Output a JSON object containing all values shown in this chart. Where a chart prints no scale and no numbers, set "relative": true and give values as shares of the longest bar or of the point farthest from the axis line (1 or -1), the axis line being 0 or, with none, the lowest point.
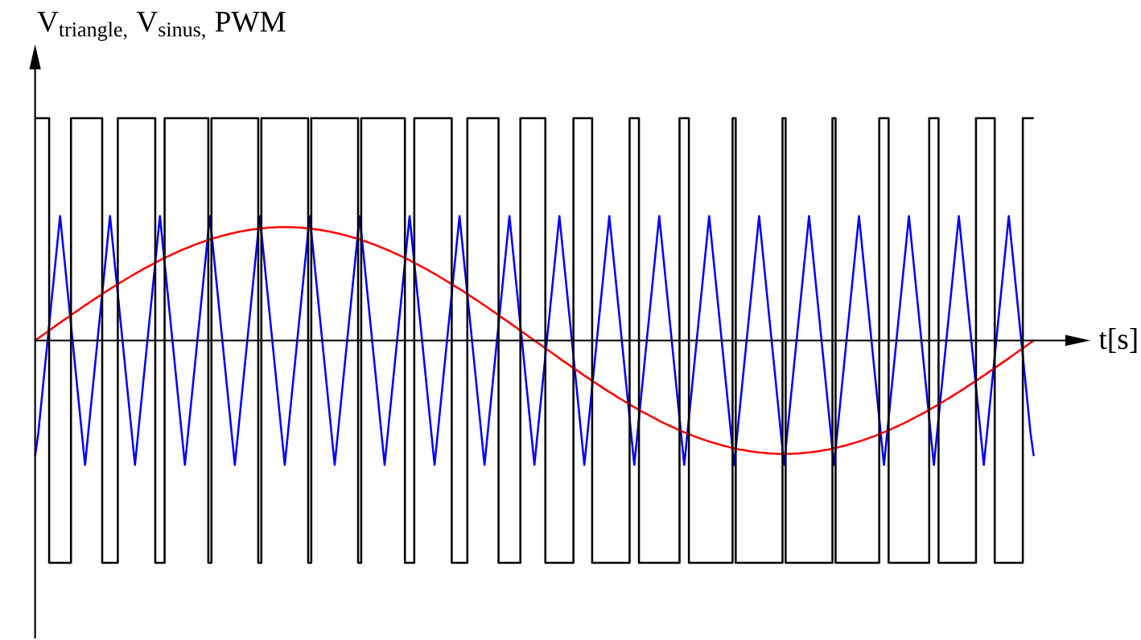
{
  "chart_data": {
    "type": "line",
    "relative": true,
    "xlabel": "t[s]",
    "ylabel": "V$_{triangle,}$ V$_{sinus,}$ PWM",
    "categories": [
      null,
      null,
      null,
      null,
      null,
      null,
      null,
      null,
      null,
      null,
      null,
      null,
      null,
      null,
      null,
      null,
      null,
      null,
      null,
      null,
      null,
      null,
      null,
      null,
      null,
      null,
      null,
      null,
      null,
      null,
      null,
      null,
      null,
      null,
      null,
      null,
      null,
      null,
      null,
      null,
      null,
      null,
      null,
      null,
      null,
      null,
      null,
      null,
      null,
      null,
      null,
      null,
      null,
      null,
      null,
      null,
      null,
      null,
      null,
      null,
      null,
      null,
      null,
      null,
      null,
      null,
      null,
      null,
      null,
      null,
      null,
      null,
      null,
      null,
      null,
      null,
      null,
      null,
      null,
      null,
      null,
      null,
      null,
      null,
      null,
      null,
      null,
      null,
      null,
      null,
      null,
      null,
      null,
      null,
      null,
      null,
      null,
      null,
      null,
      null,
      null,
      null,
      null,
      null,
      null,
      null,
      null,
      null,
      null,
      null,
      null,
      null,
      null,
      null,
      null,
      null,
      null,
      null,
      null,
      null,
      null,
      null,
      null,
      null,
      null,
      null,
      null,
      null,
      null,
      null,
      null,
      null,
      null,
      null,
      null,
      null,
      null,
      null,
      null,
      null,
      null,
      null,
      null,
      null,
      null,
      null,
      null,
      null,
      null,
      null,
      null,
      null,
      null,
      null,
      null,
      null,
      null,
      null,
      null,
      null,
      null,
      null,
      null,
      null,
      null,
      null,
      null,
      null,
      null,
      null,
      null,
      null,
      null,
      null,
      null,
      null,
      null,
      null,
      null,
      null,
      null,
      null,
      null,
      null,
      null,
      null,
      null,
      null,
      null,
      null,
      null,
      null,
      null,
      null,
      null,
      null,
      null,
      null,
      null,
      null,
      null,
      null,
      null,
      null,
      null,
      null,
      null,
      null,
      null,
      null,
      null,
      null,
      null,
      null,
      null,
      null,
      null,
      null,
      null,
      null,
      null,
      null,
      null,
      null,
      null,
      null,
      null,
      null,
      null,
      null,
      null,
      null,
      null,
      null,
      null,
      null,
      null,
      null,
      null,
      null,
      null,
      null,
      null,
      null,
      null,
      null,
      null,
      null,
      null,
      null,
      null,
      null,
      null,
      null,
      null,
      null,
      null,
      null,
      null,
      null,
      null,
      null,
      null,
      null,
      null,
      null,
      null,
      null,
      null,
      null,
      null,
      null,
      null,
      null,
      null,
      null,
      null,
      null,
      null,
      null,
      null,
      null,
      null,
      null,
      null,
      null,
      null,
      null,
      null,
      null,
      null,
      null,
      null,
      null,
      null,
      null,
      null,
      null,
      null,
      null,
      null,
      null,
      null,
      null,
      null,
      null,
      null,
      null,
      null,
      null,
      null,
      null,
      null,
      null,
      null,
      null,
      null,
      null,
      null,
      null,
      null
    ],
    "series": [
      {
        "color": "#0000ff",
        "values": [
          -0.52,
          -0.42,
          -0.28,
          -0.14,
          0,
          0.14,
          0.28,
          0.42,
          0.56,
          0.42,
          0.28,
          0.14,
          0,
          -0.14,
          -0.28,
          -0.42,
          -0.56,
          -0.42,
          -0.28,
          -0.14,
          0,
          0.14,
          0.28,
          0.42,
          0.56,
          0.42,
          0.28,
          0.14,
          0,
          -0.14,
          -0.28,
          -0.42,
          -0.56,
          -0.42,
          -0.28,
          -0.14,
          0,
          0.14,
          0.28,
          0.42,
          0.56,
          0.42,
          0.28,
          0.14,
          0,
          -0.14,
          -0.28,
          -0.42,
          -0.56,
          -0.42,
          -0.28,
          -0.14,
          0,
          0.14,
          0.28,
          0.42,
          0.56,
          0.42,
          0.28,
          0.14,
          0,
          -0.14,
          -0.28,
          -0.42,
          -0.56,
          -0.42,
          -0.28,
          -0.14,
          0,
          0.14,
          0.28,
          0.42,
          0.56,
          0.42,
          0.28,
          0.14,
          0,
          -0.14,
          -0.28,
          -0.42,
          -0.56,
          -0.42,
          -0.28,
          -0.14,
          0,
          0.14,
          0.28,
          0.42,
          0.56,
          0.42,
          0.28,
          0.14,
          0,
          -0.14,
          -0.28,
          -0.42,
          -0.56,
          -0.42,
          -0.28,
          -0.14,
          0,
          0.14,
          0.28,
          0.42,
          0.56,
          0.42,
          0.28,
          0.14,
          0,
          -0.14,
          -0.28,
          -0.42,
          -0.56,
          -0.42,
          -0.28,
          -0.14,
          0,
          0.14,
          0.28,
          0.42,
          0.56,
          0.42,
          0.28,
          0.14,
          0,
          -0.14,
          -0.28,
          -0.42,
          -0.56,
          -0.42,
          -0.28,
          -0.14,
          0,
          0.14,
          0.28,
          0.42,
          0.56,
          0.42,
          0.28,
          0.14,
          0,
          -0.14,
          -0.28,
          -0.42,
          -0.56,
          -0.42,
          -0.28,
          -0.14,
          0,
          0.14,
          0.28,
          0.42,
          0.56,
          0.42,
          0.28,
          0.14,
          0,
          -0.14,
          -0.28,
          -0.42,
          -0.56,
          -0.42,
          -0.28,
          -0.14,
          0,
          0.14,
          0.28,
          0.42,
          0.56,
          0.42,
          0.28,
          0.14,
          0,
          -0.14,
          -0.28,
          -0.42,
          -0.56,
          -0.42,
          -0.28,
          -0.14,
          0,
          0.14,
          0.28,
          0.42,
          0.56,
          0.42,
          0.28,
          0.14,
          0,
          -0.14,
          -0.28,
          -0.42,
          -0.56,
          -0.42,
          -0.28,
          -0.14,
          0,
          0.14,
          0.28,
          0.42,
          0.56,
          0.42,
          0.28,
          0.14,
          0,
          -0.14,
          -0.28,
          -0.42,
          -0.56,
          -0.42,
          -0.28,
          -0.14,
          0,
          0.14,
          0.28,
          0.42,
          0.56,
          0.42,
          0.28,
          0.14,
          0,
          -0.14,
          -0.28,
          -0.42,
          -0.56,
          -0.42,
          -0.28,
          -0.14,
          0,
          0.14,
          0.28,
          0.42,
          0.56,
          0.42,
          0.28,
          0.14,
          0,
          -0.14,
          -0.28,
          -0.42,
          -0.56,
          -0.42,
          -0.28,
          -0.14,
          0,
          0.14,
          0.28,
          0.42,
          0.56,
          0.42,
          0.28,
          0.14,
          0,
          -0.14,
          -0.28,
          -0.42,
          -0.56,
          -0.42,
          -0.28,
          -0.14,
          0,
          0.14,
          0.28,
          0.42,
          0.56,
          0.42,
          0.28,
          0.14,
          0,
          -0.14,
          -0.28,
          -0.42,
          -0.56,
          -0.42,
          -0.28,
          -0.14,
          0,
          0.14,
          0.28,
          0.42,
          0.56,
          0.42,
          0.28,
          0.14,
          0,
          -0.14,
          -0.28,
          -0.42,
          -0.56,
          -0.42,
          -0.28,
          -0.14,
          0,
          0.14,
          0.28,
          0.42,
          0.56,
          0.42,
          0.28,
          0.14,
          0,
          -0.14,
          -0.28,
          -0.42,
          -0.56,
          -0.42,
          -0.28,
          -0.14,
          0,
          0.14,
          0.28,
          0.42,
          0.56,
          0.42,
          0.28,
          0.14,
          0,
          -0.14,
          -0.28,
          -0.42,
          -0.52
        ]
      },
      {
        "color": "#ff0000",
        "values": [
          0,
          0.01,
          0.02,
          0.03,
          0.04,
          0.05,
          0.06,
          0.07,
          0.08,
          0.09,
          0.099,
          0.109,
          0.119,
          0.129,
          0.138,
          0.148,
          0.158,
          0.167,
          0.177,
          0.186,
          0.195,
          0.204,
          0.214,
          0.223,
          0.232,
          0.24,
          0.249,
          0.258,
          0.266,
          0.275,
          0.283,
          0.292,
          0.3,
          0.308,
          0.316,
          0.324,
          0.331,
          0.339,
          0.346,
          0.353,
          0.361,
          0.368,
          0.375,
          0.381,
          0.388,
          0.394,
          0.401,
          0.407,
          0.413,
          0.418,
          0.424,
          0.43,
          0.435,
          0.44,
          0.445,
          0.45,
          0.454,
          0.459,
          0.463,
          0.467,
          0.471,
          0.475,
          0.478,
          0.482,
          0.485,
          0.488,
          0.491,
          0.493,
          0.496,
          0.498,
          0.5,
          0.502,
          0.504,
          0.505,
          0.506,
          0.508,
          0.508,
          0.509,
          0.51,
          0.51,
          0.51,
          0.51,
          0.51,
          0.509,
          0.508,
          0.508,
          0.506,
          0.505,
          0.504,
          0.502,
          0.5,
          0.498,
          0.496,
          0.493,
          0.491,
          0.488,
          0.485,
          0.482,
          0.478,
          0.475,
          0.471,
          0.467,
          0.463,
          0.459,
          0.454,
          0.45,
          0.445,
          0.44,
          0.435,
          0.43,
          0.424,
          0.418,
          0.413,
          0.407,
          0.401,
          0.394,
          0.388,
          0.381,
          0.375,
          0.368,
          0.361,
          0.353,
          0.346,
          0.339,
          0.331,
          0.324,
          0.316,
          0.308,
          0.3,
          0.292,
          0.283,
          0.275,
          0.266,
          0.258,
          0.249,
          0.24,
          0.232,
          0.223,
          0.214,
          0.204,
          0.195,
          0.186,
          0.177,
          0.167,
          0.158,
          0.148,
          0.138,
          0.129,
          0.119,
          0.109,
          0.099,
          0.09,
          0.08,
          0.07,
          0.06,
          0.05,
          0.04,
          0.03,
          0.02,
          0.01,
          0,
          -0.01,
          -0.02,
          -0.03,
          -0.04,
          -0.05,
          -0.06,
          -0.07,
          -0.08,
          -0.09,
          -0.099,
          -0.109,
          -0.119,
          -0.129,
          -0.138,
          -0.148,
          -0.158,
          -0.167,
          -0.177,
          -0.186,
          -0.195,
          -0.204,
          -0.214,
          -0.223,
          -0.232,
          -0.24,
          -0.249,
          -0.258,
          -0.266,
          -0.275,
          -0.283,
          -0.292,
          -0.3,
          -0.308,
          -0.316,
          -0.324,
          -0.331,
          -0.339,
          -0.346,
          -0.353,
          -0.361,
          -0.368,
          -0.375,
          -0.381,
          -0.388,
          -0.394,
          -0.401,
          -0.407,
          -0.413,
          -0.418,
          -0.424,
          -0.43,
          -0.435,
          -0.44,
          -0.445,
          -0.45,
          -0.454,
          -0.459,
          -0.463,
          -0.467,
          -0.471,
          -0.475,
          -0.478,
          -0.482,
          -0.485,
          -0.488,
          -0.491,
          -0.493,
          -0.496,
          -0.498,
          -0.5,
          -0.502,
          -0.504,
          -0.505,
          -0.506,
          -0.508,
          -0.508,
          -0.509,
          -0.51,
          -0.51,
          -0.51,
          -0.51,
          -0.51,
          -0.509,
          -0.508,
          -0.508,
          -0.506,
          -0.505,
          -0.504,
          -0.502,
          -0.5,
          -0.498,
          -0.496,
          -0.493,
          -0.491,
          -0.488,
          -0.485,
          -0.482,
          -0.478,
          -0.475,
          -0.471,
          -0.467,
          -0.463,
          -0.459,
          -0.454,
          -0.45,
          -0.445,
          -0.44,
          -0.435,
          -0.43,
          -0.424,
          -0.418,
          -0.413,
          -0.407,
          -0.401,
          -0.394,
          -0.388,
          -0.381,
          -0.375,
          -0.368,
          -0.361,
          -0.353,
          -0.346,
          -0.339,
          -0.331,
          -0.324,
          -0.316,
          -0.308,
          -0.3,
          -0.292,
          -0.283,
          -0.275,
          -0.266,
          -0.258,
          -0.249,
          -0.24,
          -0.232,
          -0.223,
          -0.214,
          -0.204,
          -0.195,
          -0.186,
          -0.177,
          -0.167,
          -0.158,
          -0.148,
          -0.138,
          -0.129,
          -0.119,
          -0.109,
          -0.099,
          -0.09,
          -0.08,
          -0.07,
          -0.06,
          -0.05,
          -0.04,
          -0.03,
          -0.02,
          -0.01,
          0
        ]
      },
      {
        "type": "step",
        "color": "#000000",
        "values": [
          1,
          1,
          1,
          1,
          1,
          -1,
          -1,
          -1,
          -1,
          -1,
          -1,
          -1,
          1,
          1,
          1,
          1,
          1,
          1,
          1,
          1,
          1,
          1,
          -1,
          -1,
          -1,
          -1,
          -1,
          1,
          1,
          1,
          1,
          1,
          1,
          1,
          1,
          1,
          1,
          1,
          1,
          -1,
          -1,
          -1,
          1,
          1,
          1,
          1,
          1,
          1,
          1,
          1,
          1,
          1,
          1,
          1,
          1,
          1,
          -1,
          1,
          1,
          1,
          1,
          1,
          1,
          1,
          1,
          1,
          1,
          1,
          1,
          1,
          1,
          1,
          -1,
          1,
          1,
          1,
          1,
          1,
          1,
          1,
          1,
          1,
          1,
          1,
          1,
          1,
          1,
          1,
          -1,
          1,
          1,
          1,
          1,
          1,
          1,
          1,
          1,
          1,
          1,
          1,
          1,
          1,
          1,
          1,
          -1,
          1,
          1,
          1,
          1,
          1,
          1,
          1,
          1,
          1,
          1,
          1,
          1,
          1,
          1,
          -1,
          -1,
          -1,
          1,
          1,
          1,
          1,
          1,
          1,
          1,
          1,
          1,
          1,
          1,
          1,
          -1,
          -1,
          -1,
          -1,
          -1,
          1,
          1,
          1,
          1,
          1,
          1,
          1,
          1,
          1,
          1,
          -1,
          -1,
          -1,
          -1,
          -1,
          -1,
          -1,
          1,
          1,
          1,
          1,
          1,
          1,
          1,
          1,
          -1,
          -1,
          -1,
          -1,
          -1,
          -1,
          -1,
          -1,
          -1,
          1,
          1,
          1,
          1,
          1,
          1,
          -1,
          -1,
          -1,
          -1,
          -1,
          -1,
          -1,
          -1,
          -1,
          -1,
          -1,
          -1,
          1,
          1,
          1,
          -1,
          -1,
          -1,
          -1,
          -1,
          -1,
          -1,
          -1,
          -1,
          -1,
          -1,
          -1,
          -1,
          1,
          1,
          1,
          -1,
          -1,
          -1,
          -1,
          -1,
          -1,
          -1,
          -1,
          -1,
          -1,
          -1,
          -1,
          -1,
          -1,
          1,
          -1,
          -1,
          -1,
          -1,
          -1,
          -1,
          -1,
          -1,
          -1,
          -1,
          -1,
          -1,
          -1,
          -1,
          -1,
          1,
          -1,
          -1,
          -1,
          -1,
          -1,
          -1,
          -1,
          -1,
          -1,
          -1,
          -1,
          -1,
          -1,
          -1,
          -1,
          1,
          -1,
          -1,
          -1,
          -1,
          -1,
          -1,
          -1,
          -1,
          -1,
          -1,
          -1,
          -1,
          -1,
          -1,
          1,
          1,
          1,
          -1,
          -1,
          -1,
          -1,
          -1,
          -1,
          -1,
          -1,
          -1,
          -1,
          -1,
          -1,
          -1,
          1,
          1,
          1,
          -1,
          -1,
          -1,
          -1,
          -1,
          -1,
          -1,
          -1,
          -1,
          -1,
          -1,
          -1,
          1,
          1,
          1,
          1,
          1,
          1,
          -1,
          -1,
          -1,
          -1,
          -1,
          -1,
          -1,
          -1,
          -1,
          1,
          1,
          1,
          1
        ]
      }
    ]
  }
}
